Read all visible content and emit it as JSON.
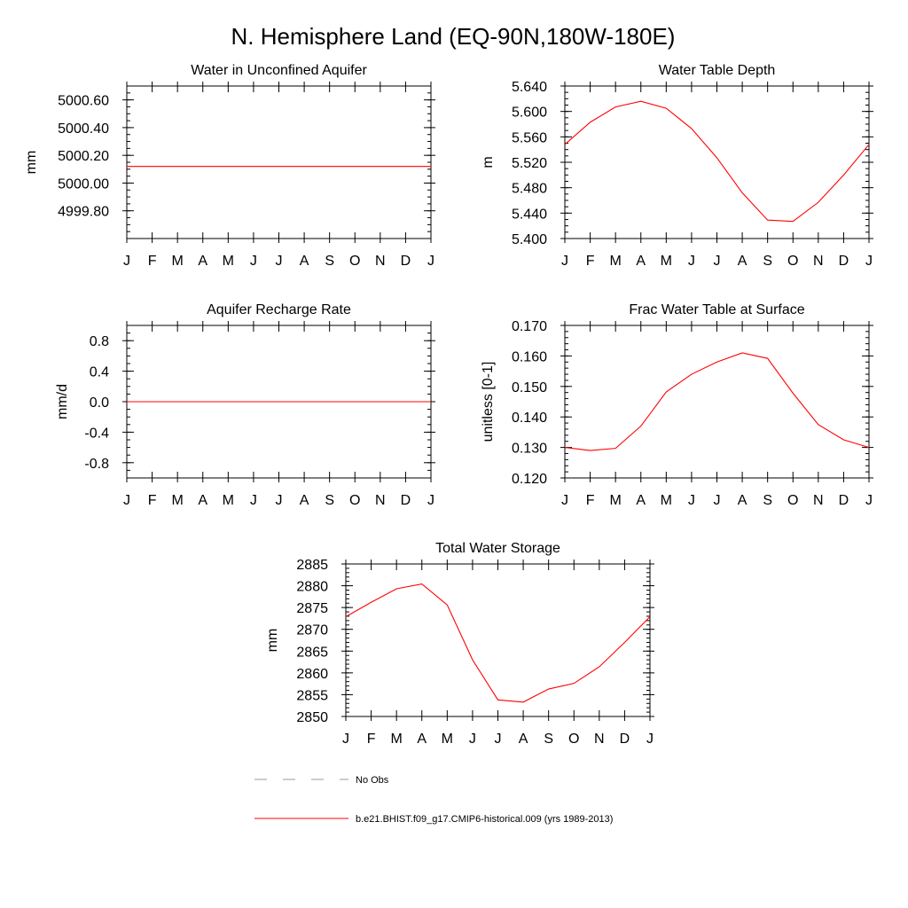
{
  "page": {
    "title": "N. Hemisphere Land (EQ-90N,180W-180E)"
  },
  "chart_data": [
    {
      "type": "line",
      "title": "Water in Unconfined Aquifer",
      "ylabel": "mm",
      "categories": [
        "J",
        "F",
        "M",
        "A",
        "M",
        "J",
        "J",
        "A",
        "S",
        "O",
        "N",
        "D",
        "J"
      ],
      "ylim": [
        4999.6,
        5000.7
      ],
      "yticks": [
        4999.8,
        5000.0,
        5000.2,
        5000.4,
        5000.6
      ],
      "ytick_labels": [
        "4999.80",
        "5000.00",
        "5000.20",
        "5000.40",
        "5000.60"
      ],
      "series": [
        {
          "name": "b.e21.BHIST.f09_g17.CMIP6-historical.009 (yrs 1989-2013)",
          "color": "#ff0000",
          "values": [
            5000.12,
            5000.12,
            5000.12,
            5000.12,
            5000.12,
            5000.12,
            5000.12,
            5000.12,
            5000.12,
            5000.12,
            5000.12,
            5000.12,
            5000.12
          ]
        }
      ]
    },
    {
      "type": "line",
      "title": "Water Table Depth",
      "ylabel": "m",
      "categories": [
        "J",
        "F",
        "M",
        "A",
        "M",
        "J",
        "J",
        "A",
        "S",
        "O",
        "N",
        "D",
        "J"
      ],
      "ylim": [
        5.4,
        5.64
      ],
      "yticks": [
        5.4,
        5.44,
        5.48,
        5.52,
        5.56,
        5.6,
        5.64
      ],
      "ytick_labels": [
        "5.400",
        "5.440",
        "5.480",
        "5.520",
        "5.560",
        "5.600",
        "5.640"
      ],
      "series": [
        {
          "name": "b.e21.BHIST.f09_g17.CMIP6-historical.009 (yrs 1989-2013)",
          "color": "#ff0000",
          "values": [
            5.548,
            5.583,
            5.607,
            5.616,
            5.605,
            5.573,
            5.527,
            5.472,
            5.429,
            5.427,
            5.457,
            5.5,
            5.548
          ]
        }
      ]
    },
    {
      "type": "line",
      "title": "Aquifer Recharge Rate",
      "ylabel": "mm/d",
      "categories": [
        "J",
        "F",
        "M",
        "A",
        "M",
        "J",
        "J",
        "A",
        "S",
        "O",
        "N",
        "D",
        "J"
      ],
      "ylim": [
        -1.0,
        1.0
      ],
      "yticks": [
        -0.8,
        -0.4,
        0.0,
        0.4,
        0.8
      ],
      "ytick_labels": [
        "-0.8",
        "-0.4",
        "0.0",
        "0.4",
        "0.8"
      ],
      "series": [
        {
          "name": "b.e21.BHIST.f09_g17.CMIP6-historical.009 (yrs 1989-2013)",
          "color": "#ff0000",
          "values": [
            0,
            0,
            0,
            0,
            0,
            0,
            0,
            0,
            0,
            0,
            0,
            0,
            0
          ]
        }
      ]
    },
    {
      "type": "line",
      "title": "Frac Water Table at Surface",
      "ylabel": "unitless [0-1]",
      "categories": [
        "J",
        "F",
        "M",
        "A",
        "M",
        "J",
        "J",
        "A",
        "S",
        "O",
        "N",
        "D",
        "J"
      ],
      "ylim": [
        0.12,
        0.17
      ],
      "yticks": [
        0.12,
        0.13,
        0.14,
        0.15,
        0.16,
        0.17
      ],
      "ytick_labels": [
        "0.120",
        "0.130",
        "0.140",
        "0.150",
        "0.160",
        "0.170"
      ],
      "series": [
        {
          "name": "b.e21.BHIST.f09_g17.CMIP6-historical.009 (yrs 1989-2013)",
          "color": "#ff0000",
          "values": [
            0.13,
            0.129,
            0.1297,
            0.137,
            0.1482,
            0.154,
            0.158,
            0.161,
            0.1592,
            0.1478,
            0.1375,
            0.1325,
            0.13
          ]
        }
      ]
    },
    {
      "type": "line",
      "title": "Total Water Storage",
      "ylabel": "mm",
      "categories": [
        "J",
        "F",
        "M",
        "A",
        "M",
        "J",
        "J",
        "A",
        "S",
        "O",
        "N",
        "D",
        "J"
      ],
      "ylim": [
        2850,
        2885
      ],
      "yticks": [
        2850,
        2855,
        2860,
        2865,
        2870,
        2875,
        2880,
        2885
      ],
      "ytick_labels": [
        "2850",
        "2855",
        "2860",
        "2865",
        "2870",
        "2875",
        "2880",
        "2885"
      ],
      "series": [
        {
          "name": "b.e21.BHIST.f09_g17.CMIP6-historical.009 (yrs 1989-2013)",
          "color": "#ff0000",
          "values": [
            2872.9,
            2876.2,
            2879.3,
            2880.4,
            2875.6,
            2863.0,
            2853.8,
            2853.3,
            2856.3,
            2857.6,
            2861.4,
            2867.0,
            2872.9
          ]
        }
      ]
    }
  ],
  "legend": {
    "obs_label": "No Obs",
    "obs_color": "#999999",
    "model_label": "b.e21.BHIST.f09_g17.CMIP6-historical.009 (yrs 1989-2013)",
    "model_color": "#ff0000"
  }
}
